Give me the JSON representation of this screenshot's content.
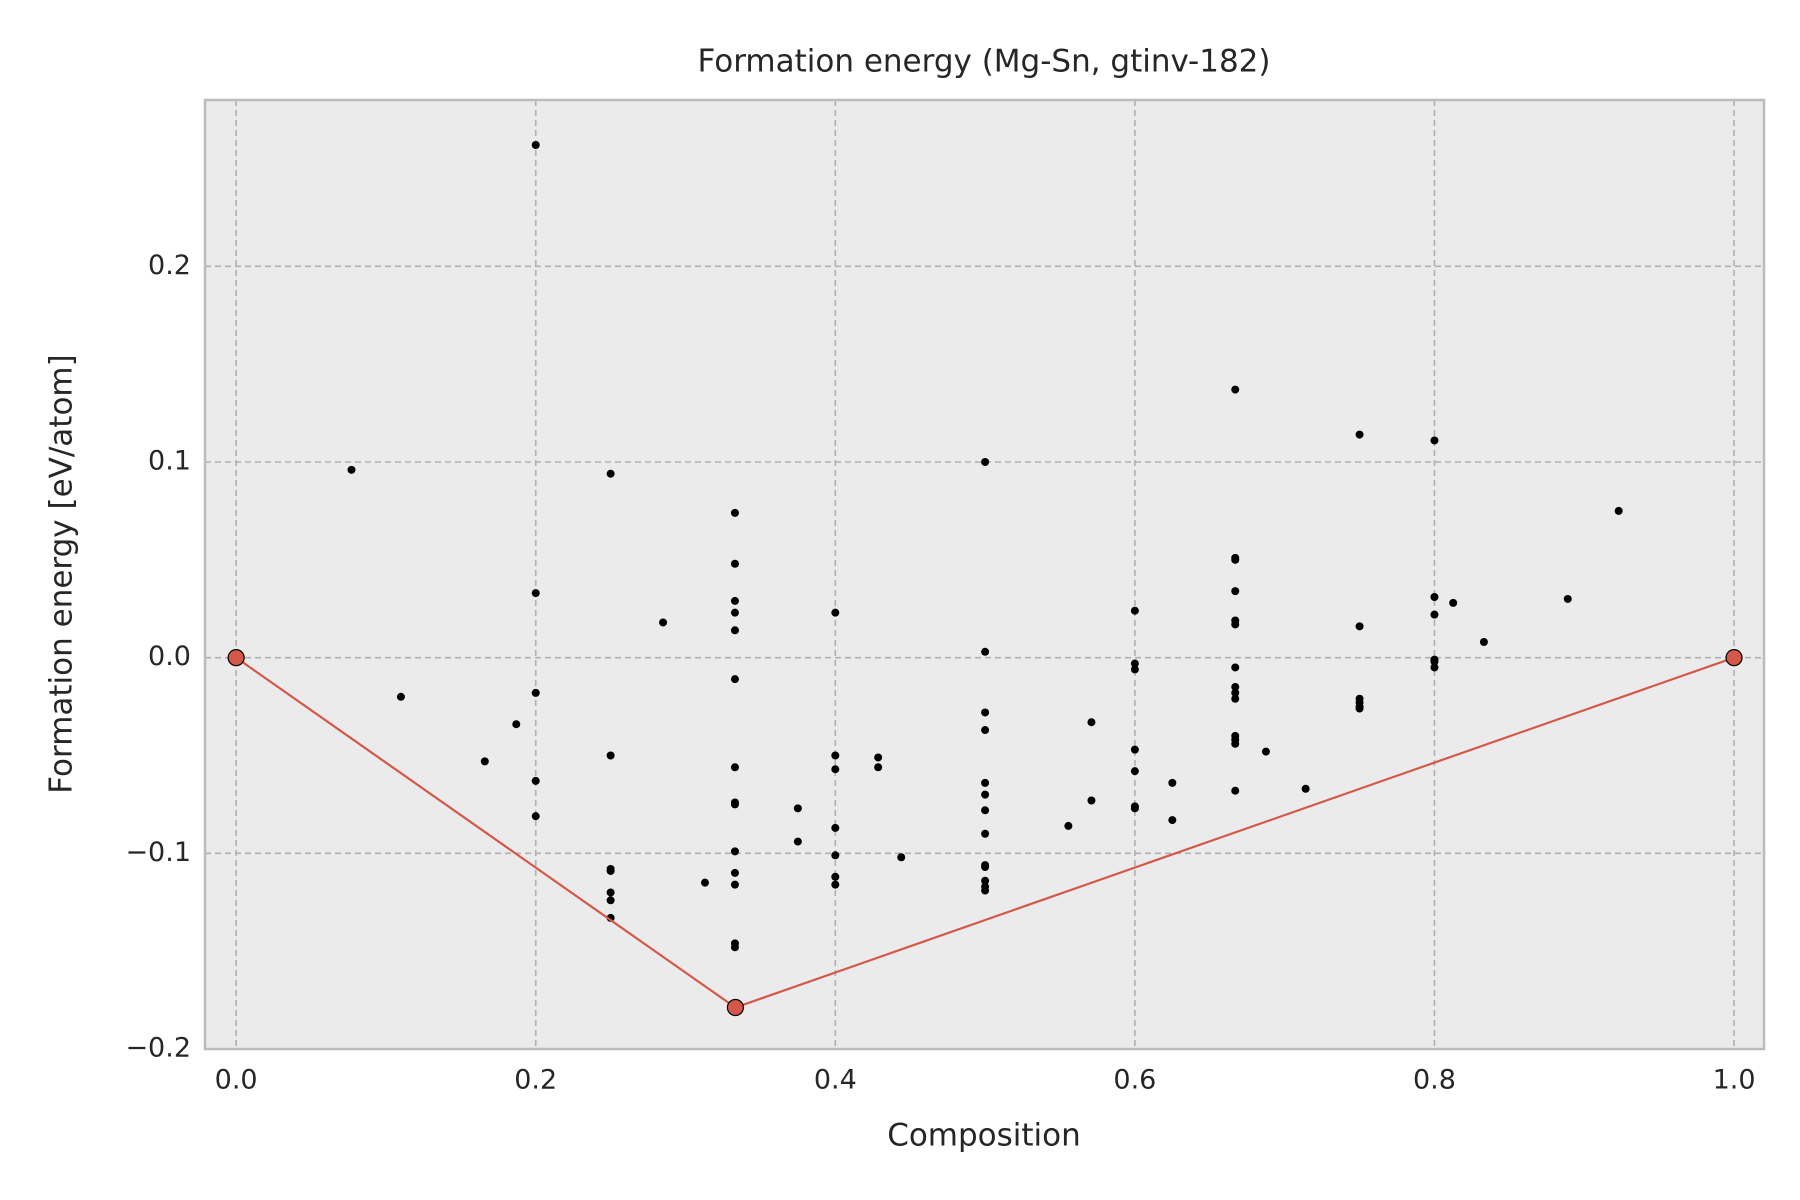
{
  "chart_data": {
    "type": "scatter",
    "title": "Formation energy (Mg-Sn, gtinv-182)",
    "x_label": "Composition",
    "y_label": "Formation energy [eV/atom]",
    "xlim": [
      -0.0208,
      1.02
    ],
    "ylim": [
      -0.2,
      0.285
    ],
    "xticks": [
      {
        "value": 0,
        "label": "0.0"
      },
      0.2,
      0.4,
      0.6,
      0.8,
      {
        "value": 1,
        "label": "1.0"
      }
    ],
    "yticks": [
      {
        "value": -0.2,
        "label": "−0.2"
      },
      {
        "value": -0.1,
        "label": "−0.1"
      },
      {
        "value": 0,
        "label": "0.0"
      },
      0.1,
      0.2
    ],
    "grid": true,
    "series": [
      {
        "color": "#000000",
        "mode": "markers",
        "x": [
          0.077,
          0.11,
          0.166,
          0.187,
          0.2,
          0.2,
          0.2,
          0.2,
          0.2,
          0.25,
          0.25,
          0.25,
          0.25,
          0.25,
          0.25,
          0.25,
          0.285,
          0.313,
          0.333,
          0.333,
          0.333,
          0.333,
          0.333,
          0.333,
          0.333,
          0.333,
          0.333,
          0.333,
          0.333,
          0.333,
          0.333,
          0.333,
          0.375,
          0.375,
          0.4,
          0.4,
          0.4,
          0.4,
          0.4,
          0.4,
          0.4,
          0.4286,
          0.4286,
          0.444,
          0.5,
          0.5,
          0.5,
          0.5,
          0.5,
          0.5,
          0.5,
          0.5,
          0.5,
          0.5,
          0.5,
          0.5,
          0.5,
          0.5556,
          0.571,
          0.571,
          0.6,
          0.6,
          0.6,
          0.6,
          0.6,
          0.6,
          0.6,
          0.625,
          0.625,
          0.667,
          0.667,
          0.667,
          0.667,
          0.667,
          0.667,
          0.667,
          0.667,
          0.667,
          0.667,
          0.667,
          0.667,
          0.667,
          0.667,
          0.6875,
          0.714,
          0.75,
          0.75,
          0.75,
          0.75,
          0.75,
          0.75,
          0.8,
          0.8,
          0.8,
          0.8,
          0.8,
          0.8,
          0.8125,
          0.833,
          0.889,
          0.923
        ],
        "values": [
          0.096,
          -0.02,
          -0.053,
          -0.034,
          0.262,
          0.033,
          -0.018,
          -0.063,
          -0.081,
          0.094,
          -0.05,
          -0.108,
          -0.109,
          -0.12,
          -0.124,
          -0.133,
          0.018,
          -0.115,
          0.074,
          0.048,
          0.029,
          0.023,
          0.014,
          -0.011,
          -0.056,
          -0.074,
          -0.075,
          -0.099,
          -0.11,
          -0.116,
          -0.146,
          -0.148,
          -0.077,
          -0.094,
          0.023,
          -0.05,
          -0.057,
          -0.087,
          -0.101,
          -0.112,
          -0.116,
          -0.051,
          -0.056,
          -0.102,
          0.1,
          0.003,
          -0.028,
          -0.037,
          -0.064,
          -0.07,
          -0.078,
          -0.09,
          -0.106,
          -0.107,
          -0.114,
          -0.117,
          -0.119,
          -0.086,
          -0.033,
          -0.073,
          0.024,
          -0.003,
          -0.006,
          -0.047,
          -0.058,
          -0.076,
          -0.077,
          -0.064,
          -0.083,
          0.137,
          0.051,
          0.05,
          0.034,
          0.019,
          0.017,
          -0.005,
          -0.015,
          -0.018,
          -0.021,
          -0.04,
          -0.042,
          -0.044,
          -0.068,
          -0.048,
          -0.067,
          0.114,
          0.016,
          -0.021,
          -0.023,
          -0.025,
          -0.026,
          0.111,
          0.031,
          0.022,
          -0.001,
          -0.002,
          -0.005,
          0.028,
          0.008,
          0.03,
          0.075
        ]
      },
      {
        "color": "#d4584a",
        "mode": "lines+markers",
        "x": [
          0,
          0.3333,
          1
        ],
        "values": [
          0,
          -0.1788,
          0
        ]
      }
    ]
  }
}
